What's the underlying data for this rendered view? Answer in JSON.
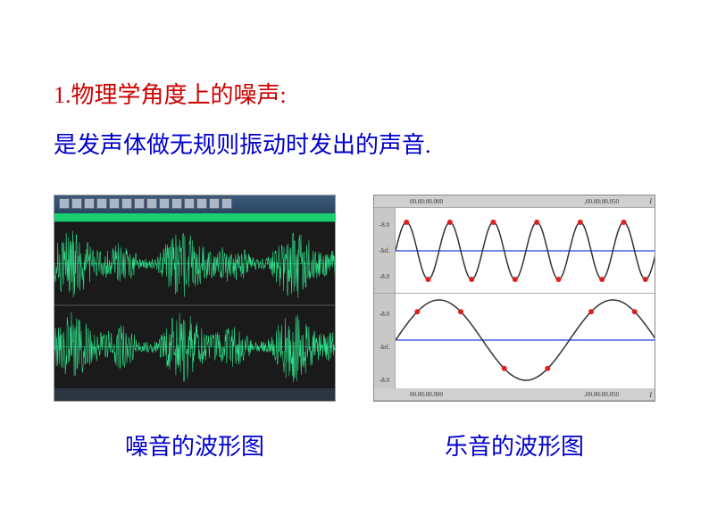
{
  "heading": "1.物理学角度上的噪声:",
  "subheading": "是发声体做无规则振动时发出的声音.",
  "noise_caption": "噪音的波形图",
  "music_caption": "乐音的波形图",
  "noise_waveform": {
    "type": "waveform-irregular",
    "tracks": 2,
    "color": "#2de08a",
    "background": "#1a1a1a",
    "centerline_color": "#2de08a",
    "header_bg": "#3b5a7a",
    "timeline_bg": "#18d070"
  },
  "music_waveform": {
    "type": "sine",
    "upper": {
      "cycles": 6,
      "amplitude": 32,
      "line_color": "#333333",
      "centerline_color": "#2040e0",
      "marker_color": "#e02020",
      "marker_count": 12,
      "background": "#ffffff",
      "time_labels": [
        "00.00:00.000",
        ",00.00:00.050"
      ],
      "y_labels": [
        "-8.0",
        "-Inf.",
        "-8.0"
      ],
      "indicator": "I"
    },
    "lower": {
      "cycles": 1.5,
      "amplitude": 45,
      "line_color": "#333333",
      "centerline_color": "#2040e0",
      "marker_color": "#e02020",
      "marker_count": 6,
      "background": "#ffffff",
      "time_labels": [
        "00.00:00.000",
        ",00.00:00.050"
      ],
      "y_labels": [
        "-8.0",
        "-Inf.",
        "-8.0"
      ],
      "indicator": "I"
    },
    "panel_bg": "#e8e8e8",
    "sidebar_bg": "#c8c8c8"
  }
}
